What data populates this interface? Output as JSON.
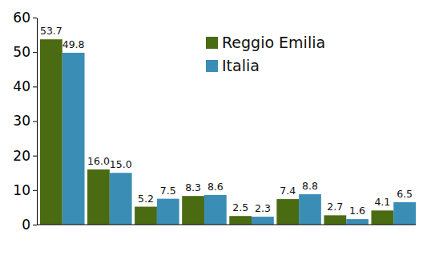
{
  "chart_data": {
    "type": "bar",
    "categories": [
      null,
      null,
      null,
      null,
      null,
      null,
      null,
      null
    ],
    "series": [
      {
        "name": "Reggio Emilia",
        "color": "#4b6b12",
        "values": [
          53.7,
          16.0,
          5.2,
          8.3,
          2.5,
          7.4,
          2.7,
          4.1
        ],
        "value_labels": [
          "53.7",
          "16.0",
          "5.2",
          "8.3",
          "2.5",
          "7.4",
          "2.7",
          "4.1"
        ]
      },
      {
        "name": "Italia",
        "color": "#3a8db5",
        "values": [
          49.8,
          15.0,
          7.5,
          8.6,
          2.3,
          8.8,
          1.6,
          6.5
        ],
        "value_labels": [
          "49.8",
          "15.0",
          "7.5",
          "8.6",
          "2.3",
          "8.8",
          "1.6",
          "6.5"
        ]
      }
    ],
    "ylim": [
      0,
      60
    ],
    "yticks": [
      0,
      10,
      20,
      30,
      40,
      50,
      60
    ],
    "grid": false,
    "legend": "upper right",
    "data_labels": true
  }
}
